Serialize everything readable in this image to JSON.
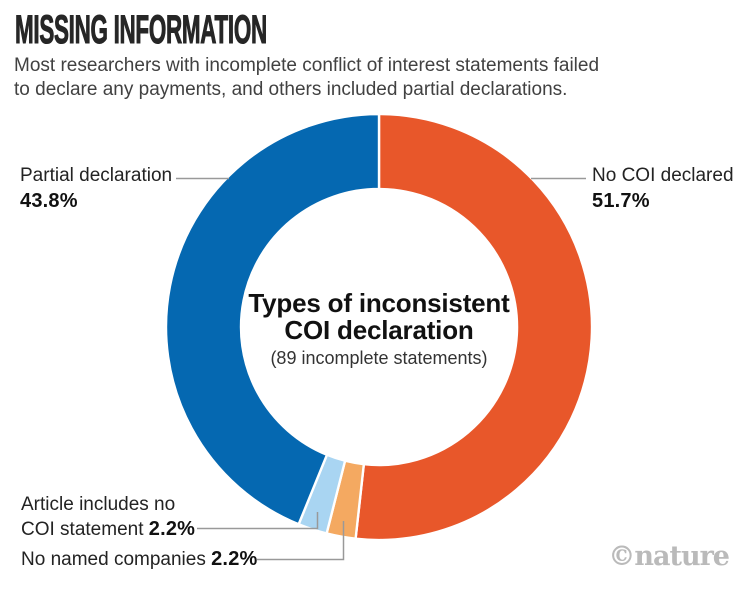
{
  "header": {
    "title": "MISSING INFORMATION",
    "subtitle_lines": [
      "Most researchers with incomplete conflict of interest statements failed",
      "to declare any payments, and others included partial declarations."
    ]
  },
  "chart_data": {
    "type": "pie",
    "variant": "donut",
    "title": "Types of inconsistent COI declaration",
    "center_title_line1": "Types of inconsistent",
    "center_title_line2": "COI declaration",
    "center_note": "(89 incomplete statements)",
    "units": "%",
    "start_angle": "12 o'clock",
    "direction": "clockwise",
    "donut_hole_ratio": 0.65,
    "segments": [
      {
        "label": "No COI declared",
        "value": 51.7,
        "color": "#e8572a"
      },
      {
        "label": "No named companies",
        "value": 2.2,
        "color": "#f4a961"
      },
      {
        "label": "Article includes no COI statement",
        "value": 2.2,
        "color": "#a9d5f2"
      },
      {
        "label": "Partial declaration",
        "value": 43.8,
        "color": "#0568b1"
      }
    ]
  },
  "callouts": [
    {
      "name": "Partial declaration",
      "pct": "43.8%"
    },
    {
      "name": "No COI declared",
      "pct": "51.7%"
    },
    {
      "name_line1": "Article includes no",
      "name_line2": "COI statement",
      "pct": "2.2%"
    },
    {
      "name": "No named companies",
      "pct": "2.2%"
    }
  ],
  "colors": {
    "leader_line": "#999999",
    "segment_divider": "#ffffff"
  },
  "credit": "©nature"
}
